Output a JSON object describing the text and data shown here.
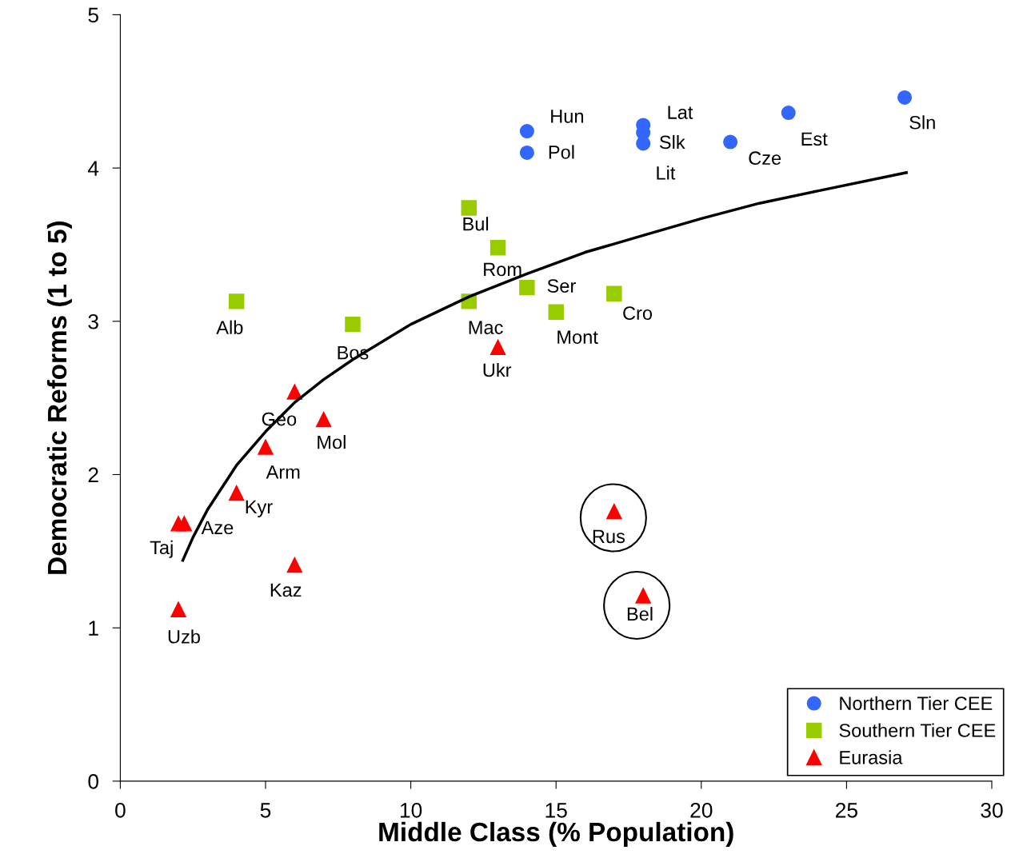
{
  "chart_data": {
    "type": "scatter",
    "xlabel": "Middle Class (% Population)",
    "ylabel": "Democratic Reforms (1 to 5)",
    "xlim": [
      0,
      30
    ],
    "xticks": [
      0,
      5,
      10,
      15,
      20,
      25,
      30
    ],
    "ylim": [
      0,
      5
    ],
    "yticks": [
      0,
      1,
      2,
      3,
      4,
      5
    ],
    "grid": false,
    "legend": "bottom right",
    "series": [
      {
        "name": "Northern Tier CEE",
        "color": "#3366ff",
        "marker": "circle",
        "x": [
          14,
          14,
          18,
          18,
          18,
          21,
          23,
          27
        ],
        "values": [
          4.24,
          4.1,
          4.28,
          4.23,
          4.16,
          4.17,
          4.36,
          4.46
        ]
      },
      {
        "name": "Southern Tier CEE",
        "color": "#99cc00",
        "marker": "square",
        "x": [
          12,
          13,
          14,
          12,
          15,
          17,
          4,
          8
        ],
        "values": [
          3.74,
          3.48,
          3.22,
          3.13,
          3.06,
          3.18,
          3.13,
          2.98
        ]
      },
      {
        "name": "Eurasia",
        "color": "#ff0000",
        "marker": "triangle",
        "x": [
          13,
          6,
          7,
          5,
          4,
          2.2,
          2,
          6,
          2,
          17,
          18
        ],
        "values": [
          2.83,
          2.54,
          2.36,
          2.18,
          1.88,
          1.68,
          1.68,
          1.41,
          1.12,
          1.76,
          1.21
        ]
      },
      {
        "type": "line",
        "color": "#000000",
        "marker": "none",
        "line_style": "solid",
        "x": [
          2.15,
          2.5,
          3,
          4,
          5,
          6,
          7,
          8,
          10,
          12,
          14,
          16,
          18,
          20,
          22,
          24,
          27.06
        ],
        "values": [
          1.44,
          1.59,
          1.77,
          2.06,
          2.28,
          2.47,
          2.62,
          2.75,
          2.98,
          3.16,
          3.31,
          3.45,
          3.56,
          3.67,
          3.77,
          3.85,
          3.97
        ]
      }
    ],
    "annotations": [
      {
        "text": "Hun",
        "x": 14,
        "y": 4.24
      },
      {
        "text": "Pol",
        "x": 14,
        "y": 4.1
      },
      {
        "text": "Lat",
        "x": 18,
        "y": 4.28
      },
      {
        "text": "Slk",
        "x": 18,
        "y": 4.23
      },
      {
        "text": "Lit",
        "x": 18,
        "y": 4.16
      },
      {
        "text": "Cze",
        "x": 21,
        "y": 4.17
      },
      {
        "text": "Est",
        "x": 23,
        "y": 4.36
      },
      {
        "text": "Sln",
        "x": 27,
        "y": 4.46
      },
      {
        "text": "Bul",
        "x": 12,
        "y": 3.74
      },
      {
        "text": "Rom",
        "x": 13,
        "y": 3.48
      },
      {
        "text": "Ser",
        "x": 14,
        "y": 3.22
      },
      {
        "text": "Mac",
        "x": 12,
        "y": 3.13
      },
      {
        "text": "Mont",
        "x": 15,
        "y": 3.06
      },
      {
        "text": "Cro",
        "x": 17,
        "y": 3.18
      },
      {
        "text": "Alb",
        "x": 4,
        "y": 3.13
      },
      {
        "text": "Bos",
        "x": 8,
        "y": 2.98
      },
      {
        "text": "Ukr",
        "x": 13,
        "y": 2.83
      },
      {
        "text": "Geo",
        "x": 6,
        "y": 2.54
      },
      {
        "text": "Mol",
        "x": 7,
        "y": 2.36
      },
      {
        "text": "Arm",
        "x": 5,
        "y": 2.18
      },
      {
        "text": "Kyr",
        "x": 4,
        "y": 1.88
      },
      {
        "text": "Aze",
        "x": 2.2,
        "y": 1.68
      },
      {
        "text": "Taj",
        "x": 2,
        "y": 1.68
      },
      {
        "text": "Kaz",
        "x": 6,
        "y": 1.41
      },
      {
        "text": "Uzb",
        "x": 2,
        "y": 1.12
      },
      {
        "text": "Rus",
        "x": 17,
        "y": 1.76
      },
      {
        "text": "Bel",
        "x": 18,
        "y": 1.21
      }
    ]
  }
}
